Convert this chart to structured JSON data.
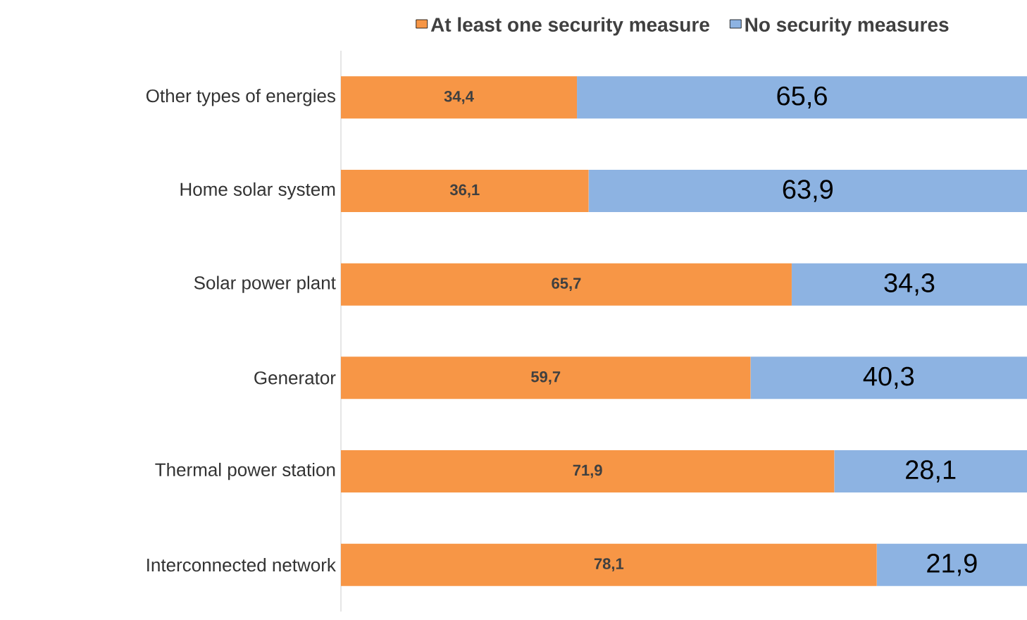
{
  "chart_data": {
    "type": "bar",
    "orientation": "horizontal",
    "stacked": true,
    "legend": "top",
    "categories": [
      "Other types of energies",
      "Home solar system",
      "Solar power plant",
      "Generator",
      "Thermal power station",
      "Interconnected network"
    ],
    "series": [
      {
        "name": "At least one security measure",
        "color": "#f79646",
        "values": [
          34.4,
          36.1,
          65.7,
          59.7,
          71.9,
          78.1
        ],
        "value_labels": [
          "34,4",
          "36,1",
          "65,7",
          "59,7",
          "71,9",
          "78,1"
        ]
      },
      {
        "name": "No security measures",
        "color": "#8db3e2",
        "values": [
          65.6,
          63.9,
          34.3,
          40.3,
          28.1,
          21.9
        ],
        "value_labels": [
          "65,6",
          "63,9",
          "34,3",
          "40,3",
          "28,1",
          "21,9"
        ]
      }
    ]
  }
}
